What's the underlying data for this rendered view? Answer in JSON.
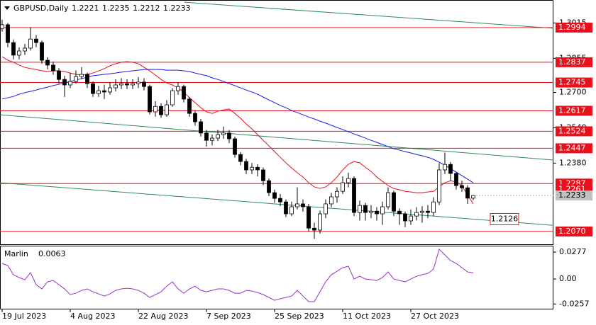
{
  "chart_data": {
    "type": "candlestick",
    "title": "GBPUSD,Daily",
    "ylim": [
      1.2012,
      1.3119
    ],
    "yticks": [
      1.3015,
      1.2855,
      {
        "value": 1.27,
        "label": "1.2700"
      },
      {
        "value": 1.254,
        "label": "1.2540"
      },
      {
        "value": 1.238,
        "label": "1.2380"
      }
    ],
    "x_labels": [
      {
        "index": 0,
        "label": "19 Jul 2023"
      },
      {
        "index": 12,
        "label": "4 Aug 2023"
      },
      {
        "index": 24,
        "label": "22 Aug 2023"
      },
      {
        "index": 36,
        "label": "7 Sep 2023"
      },
      {
        "index": 48,
        "label": "25 Sep 2023"
      },
      {
        "index": 60,
        "label": "11 Oct 2023"
      },
      {
        "index": 72,
        "label": "27 Oct 2023"
      }
    ],
    "ohlc": [
      [
        1.299,
        1.303,
        1.2975,
        1.3007
      ],
      [
        1.3007,
        1.3015,
        1.2905,
        1.2926
      ],
      [
        1.2926,
        1.294,
        1.285,
        1.2869
      ],
      [
        1.2869,
        1.2905,
        1.285,
        1.2888
      ],
      [
        1.2888,
        1.292,
        1.287,
        1.2901
      ],
      [
        1.2901,
        1.2995,
        1.289,
        1.2942
      ],
      [
        1.2942,
        1.296,
        1.2905,
        1.2926
      ],
      [
        1.2926,
        1.2935,
        1.283,
        1.2846
      ],
      [
        1.2846,
        1.286,
        1.2805,
        1.2824
      ],
      [
        1.2824,
        1.284,
        1.278,
        1.2798
      ],
      [
        1.2798,
        1.281,
        1.274,
        1.2759
      ],
      [
        1.2759,
        1.2775,
        1.268,
        1.2734
      ],
      [
        1.2734,
        1.279,
        1.272,
        1.275
      ],
      [
        1.275,
        1.28,
        1.274,
        1.2772
      ],
      [
        1.2772,
        1.2815,
        1.276,
        1.2782
      ],
      [
        1.2782,
        1.279,
        1.272,
        1.274
      ],
      [
        1.274,
        1.275,
        1.268,
        1.2695
      ],
      [
        1.2695,
        1.273,
        1.268,
        1.2708
      ],
      [
        1.2708,
        1.2735,
        1.267,
        1.2702
      ],
      [
        1.2702,
        1.2745,
        1.269,
        1.2721
      ],
      [
        1.2721,
        1.276,
        1.2705,
        1.2734
      ],
      [
        1.2734,
        1.2765,
        1.2715,
        1.274
      ],
      [
        1.274,
        1.276,
        1.2715,
        1.2734
      ],
      [
        1.2734,
        1.276,
        1.2715,
        1.274
      ],
      [
        1.274,
        1.277,
        1.272,
        1.2747
      ],
      [
        1.2747,
        1.2765,
        1.271,
        1.2727
      ],
      [
        1.2727,
        1.2735,
        1.26,
        1.2612
      ],
      [
        1.2612,
        1.266,
        1.259,
        1.2637
      ],
      [
        1.2637,
        1.265,
        1.2585,
        1.2599
      ],
      [
        1.2599,
        1.2665,
        1.259,
        1.2644
      ],
      [
        1.2644,
        1.272,
        1.2635,
        1.2708
      ],
      [
        1.2708,
        1.2745,
        1.269,
        1.2727
      ],
      [
        1.2727,
        1.2735,
        1.2655,
        1.267
      ],
      [
        1.267,
        1.268,
        1.259,
        1.2605
      ],
      [
        1.2605,
        1.262,
        1.255,
        1.2567
      ],
      [
        1.2567,
        1.258,
        1.25,
        1.2516
      ],
      [
        1.2516,
        1.253,
        1.2455,
        1.2483
      ],
      [
        1.2483,
        1.251,
        1.246,
        1.2493
      ],
      [
        1.2493,
        1.253,
        1.248,
        1.2509
      ],
      [
        1.2509,
        1.2545,
        1.249,
        1.2516
      ],
      [
        1.2516,
        1.253,
        1.247,
        1.249
      ],
      [
        1.249,
        1.25,
        1.2405,
        1.2419
      ],
      [
        1.2419,
        1.243,
        1.237,
        1.2387
      ],
      [
        1.2387,
        1.24,
        1.233,
        1.2349
      ],
      [
        1.2349,
        1.238,
        1.233,
        1.2361
      ],
      [
        1.2361,
        1.2375,
        1.232,
        1.2349
      ],
      [
        1.2349,
        1.236,
        1.228,
        1.23
      ],
      [
        1.23,
        1.231,
        1.223,
        1.2246
      ],
      [
        1.2246,
        1.226,
        1.22,
        1.222
      ],
      [
        1.222,
        1.224,
        1.2185,
        1.2204
      ],
      [
        1.2204,
        1.2215,
        1.2135,
        1.215
      ],
      [
        1.215,
        1.2205,
        1.214,
        1.2182
      ],
      [
        1.2182,
        1.227,
        1.217,
        1.2195
      ],
      [
        1.2195,
        1.2215,
        1.216,
        1.2182
      ],
      [
        1.2182,
        1.2195,
        1.207,
        1.2085
      ],
      [
        1.2085,
        1.211,
        1.2037,
        1.2076
      ],
      [
        1.2076,
        1.2165,
        1.206,
        1.215
      ],
      [
        1.215,
        1.2215,
        1.213,
        1.2195
      ],
      [
        1.2195,
        1.2245,
        1.218,
        1.2227
      ],
      [
        1.2227,
        1.227,
        1.22,
        1.2252
      ],
      [
        1.2252,
        1.232,
        1.224,
        1.2291
      ],
      [
        1.2291,
        1.2337,
        1.227,
        1.231
      ],
      [
        1.231,
        1.232,
        1.214,
        1.2156
      ],
      [
        1.2156,
        1.221,
        1.212,
        1.2188
      ],
      [
        1.2188,
        1.22,
        1.212,
        1.2156
      ],
      [
        1.2156,
        1.219,
        1.213,
        1.2162
      ],
      [
        1.2162,
        1.218,
        1.212,
        1.215
      ],
      [
        1.215,
        1.2205,
        1.21,
        1.2182
      ],
      [
        1.2182,
        1.227,
        1.217,
        1.2246
      ],
      [
        1.2246,
        1.2255,
        1.214,
        1.2162
      ],
      [
        1.2162,
        1.2175,
        1.21,
        1.215
      ],
      [
        1.215,
        1.216,
        1.209,
        1.2118
      ],
      [
        1.2118,
        1.217,
        1.21,
        1.214
      ],
      [
        1.214,
        1.218,
        1.212,
        1.2156
      ],
      [
        1.2156,
        1.2185,
        1.211,
        1.2162
      ],
      [
        1.2162,
        1.219,
        1.213,
        1.2156
      ],
      [
        1.2156,
        1.2225,
        1.214,
        1.2204
      ],
      [
        1.2204,
        1.238,
        1.219,
        1.2349
      ],
      [
        1.2349,
        1.2428,
        1.233,
        1.2374
      ],
      [
        1.2374,
        1.2385,
        1.23,
        1.2333
      ],
      [
        1.2333,
        1.234,
        1.226,
        1.2278
      ],
      [
        1.2278,
        1.23,
        1.225,
        1.2268
      ],
      [
        1.2268,
        1.228,
        1.2195,
        1.2221
      ],
      [
        1.2221,
        1.2235,
        1.2212,
        1.2233
      ]
    ],
    "lines": [
      {
        "color": "#e8101a",
        "values": [
          1.2862,
          1.2846,
          1.2837,
          1.2824,
          1.2814,
          1.2808,
          1.2804,
          1.2798,
          1.2795,
          1.2798,
          1.2798,
          1.2795,
          1.2788,
          1.2782,
          1.2779,
          1.2782,
          1.2788,
          1.2798,
          1.2808,
          1.2821,
          1.283,
          1.2837,
          1.284,
          1.2837,
          1.283,
          1.2814,
          1.2798,
          1.2779,
          1.2759,
          1.2743,
          1.2734,
          1.2721,
          1.2702,
          1.2676,
          1.2654,
          1.2631,
          1.2612,
          1.2605,
          1.2615,
          1.2621,
          1.2625,
          1.2605,
          1.2583,
          1.2557,
          1.2535,
          1.2509,
          1.2483,
          1.2458,
          1.2432,
          1.2406,
          1.2381,
          1.2358,
          1.2336,
          1.2317,
          1.2291,
          1.2272,
          1.2265,
          1.2272,
          1.2291,
          1.2317,
          1.2349,
          1.2374,
          1.2387,
          1.2381,
          1.2361,
          1.2342,
          1.2317,
          1.2297,
          1.2278,
          1.2265,
          1.2259,
          1.2252,
          1.2249,
          1.2246,
          1.2246,
          1.2249,
          1.2252,
          1.2272,
          1.2291,
          1.23,
          1.2294,
          1.2278,
          1.2236,
          1.2195
        ]
      },
      {
        "color": "#1a1ae8",
        "values": [
          1.267,
          1.2676,
          1.2682,
          1.2692,
          1.2699,
          1.2705,
          1.2711,
          1.2718,
          1.2724,
          1.2731,
          1.2737,
          1.2743,
          1.275,
          1.2756,
          1.2763,
          1.2769,
          1.2776,
          1.2779,
          1.2782,
          1.2785,
          1.2788,
          1.2792,
          1.2795,
          1.2798,
          1.2801,
          1.2804,
          1.2804,
          1.2804,
          1.2804,
          1.2801,
          1.2801,
          1.2801,
          1.2798,
          1.2795,
          1.2788,
          1.2782,
          1.2776,
          1.2766,
          1.2759,
          1.275,
          1.274,
          1.2731,
          1.2721,
          1.2711,
          1.2702,
          1.2692,
          1.2679,
          1.2666,
          1.2654,
          1.2641,
          1.2631,
          1.2618,
          1.2609,
          1.2599,
          1.2589,
          1.258,
          1.257,
          1.2561,
          1.2551,
          1.2541,
          1.2532,
          1.2522,
          1.2512,
          1.2503,
          1.2493,
          1.2483,
          1.2474,
          1.2464,
          1.2455,
          1.2445,
          1.2439,
          1.2432,
          1.2426,
          1.2419,
          1.2413,
          1.2406,
          1.2397,
          1.2384,
          1.2371,
          1.2355,
          1.2339,
          1.2323,
          1.2307,
          1.2291
        ]
      }
    ],
    "trendlines": [
      {
        "color": "#2e8b57",
        "start": {
          "index": 32.1,
          "price": 1.3109
        },
        "end": {
          "index": 97.1,
          "price": 1.2991
        }
      },
      {
        "color": "#2e8b57",
        "start": {
          "index": -0.4,
          "price": 1.2599
        },
        "end": {
          "index": 97.1,
          "price": 1.2394
        }
      },
      {
        "color": "#2e8b57",
        "start": {
          "index": -0.4,
          "price": 1.2291
        },
        "end": {
          "index": 97.1,
          "price": 1.2098
        }
      }
    ],
    "levels": [
      1.2994,
      1.2837,
      1.2745,
      1.2617,
      1.2524,
      1.2447,
      1.2287,
      {
        "value": 1.207,
        "label": "1.2070"
      }
    ],
    "level_color": "#e8101a",
    "marker_level": 1.2261,
    "annotation": {
      "value": 1.2126,
      "index": 86
    },
    "indicator": {
      "title": "Marlin",
      "color": "#9b30c8",
      "ylim": [
        -0.0313,
        0.0343
      ],
      "yticks": [
        0.0277,
        {
          "value": 0,
          "label": "0.00"
        },
        -0.0257
      ],
      "values": [
        0.016,
        0.0139,
        0.0044,
        0.0015,
        -0.0007,
        0.0066,
        -0.0058,
        -0.0102,
        -0.0029,
        -0.0015,
        -0.0058,
        -0.0102,
        -0.016,
        -0.0146,
        -0.0117,
        -0.0102,
        -0.0131,
        -0.0153,
        -0.0175,
        -0.0153,
        -0.0117,
        -0.0102,
        -0.0095,
        -0.0102,
        -0.0117,
        -0.0146,
        -0.019,
        -0.016,
        -0.0131,
        -0.0073,
        -0.0029,
        -0.0102,
        -0.0146,
        -0.0102,
        -0.0073,
        -0.0117,
        -0.0131,
        -0.0117,
        -0.0102,
        -0.0102,
        -0.0117,
        -0.0146,
        -0.0146,
        -0.0117,
        -0.0124,
        -0.0139,
        -0.016,
        -0.019,
        -0.0219,
        -0.0204,
        -0.019,
        -0.0175,
        -0.0117,
        -0.0175,
        -0.0233,
        -0.0233,
        -0.0131,
        -0.0029,
        0.0044,
        0.008,
        0.0117,
        0.0131,
        0.0,
        0.0029,
        0.0,
        -0.0007,
        -0.0015,
        0.0015,
        0.0073,
        0.0,
        -0.0015,
        -0.0029,
        0.0,
        0.0029,
        0.0044,
        0.0058,
        0.0102,
        0.0306,
        0.0248,
        0.019,
        0.016,
        0.0117,
        0.0073,
        0.0063
      ]
    }
  }
}
